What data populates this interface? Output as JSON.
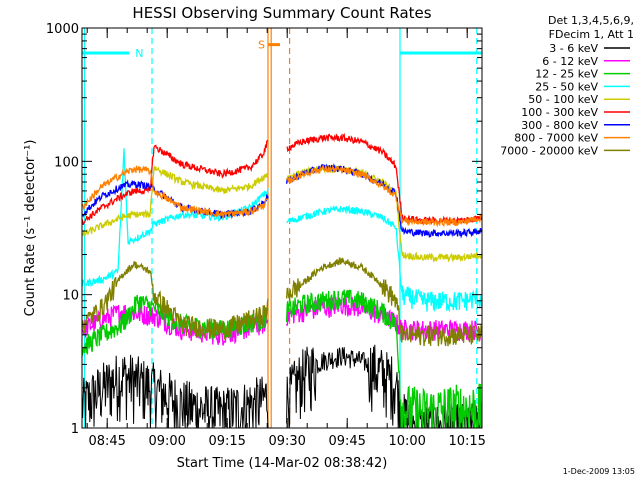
{
  "chart_data": {
    "type": "line",
    "title": "HESSI Observing Summary Count Rates",
    "xlabel": "Start Time (14-Mar-02 08:38:42)",
    "ylabel": "Count Rate (s⁻¹ detector⁻¹)",
    "y_scale": "log",
    "ylim": [
      1,
      1000
    ],
    "xlim_minutes": [
      0,
      100
    ],
    "x_ticks": [
      {
        "label": "08:45",
        "minute": 6.3
      },
      {
        "label": "09:00",
        "minute": 21.3
      },
      {
        "label": "09:15",
        "minute": 36.3
      },
      {
        "label": "09:30",
        "minute": 51.3
      },
      {
        "label": "09:45",
        "minute": 66.3
      },
      {
        "label": "10:00",
        "minute": 81.3
      },
      {
        "label": "10:15",
        "minute": 96.3
      }
    ],
    "y_ticks": [
      {
        "label": "1",
        "value": 1
      },
      {
        "label": "10",
        "value": 10
      },
      {
        "label": "100",
        "value": 100
      },
      {
        "label": "1000",
        "value": 1000
      }
    ],
    "legend": {
      "header": [
        "Det 1,3,4,5,6,9,",
        "FDecim 1, Att 1"
      ],
      "placement": "right"
    },
    "series": [
      {
        "name": "3 - 6 keV",
        "color": "#000000",
        "x": [
          0,
          5,
          10,
          18,
          25,
          35,
          45,
          46.5,
          49.5,
          51,
          55,
          60,
          65,
          70,
          75,
          78.5,
          80,
          85,
          95,
          100
        ],
        "y": [
          1.5,
          2,
          2.5,
          2,
          1.5,
          1.3,
          1.6,
          1.8,
          1.5,
          1.7,
          2.5,
          3.2,
          3.5,
          3.2,
          2.6,
          2.2,
          1.2,
          1,
          1,
          1
        ]
      },
      {
        "name": "6 - 12 keV",
        "color": "#ff00ff",
        "x": [
          0,
          5,
          10,
          18,
          25,
          35,
          45,
          46.5,
          49.5,
          51,
          55,
          60,
          65,
          70,
          75,
          78.5,
          80,
          85,
          95,
          100
        ],
        "y": [
          5.5,
          6.5,
          7.5,
          7,
          5.5,
          5,
          6,
          6.5,
          6.5,
          7,
          7.5,
          8,
          8.5,
          8,
          7,
          6.2,
          5.5,
          5.5,
          5.5,
          5.5
        ]
      },
      {
        "name": "12 - 25 keV",
        "color": "#00cc00",
        "x": [
          0,
          5,
          10,
          13,
          14,
          18,
          25,
          35,
          45,
          46.5,
          49.5,
          51,
          55,
          60,
          65,
          70,
          75,
          78.5,
          80,
          85,
          95,
          100
        ],
        "y": [
          4,
          5,
          6,
          8,
          9,
          8,
          6,
          5.5,
          6.5,
          7,
          7,
          7.5,
          8.5,
          9,
          9.5,
          9,
          7.5,
          6,
          1.4,
          1.3,
          1.4,
          1.4
        ]
      },
      {
        "name": "25 - 50 keV",
        "color": "#00ffff",
        "x": [
          0,
          5,
          9,
          10.5,
          11.5,
          13,
          17,
          18,
          25,
          35,
          42,
          45,
          46.5,
          49.5,
          51,
          55,
          60,
          65,
          70,
          75,
          78.5,
          80,
          85,
          95,
          100
        ],
        "y": [
          12,
          13,
          15,
          120,
          25,
          26,
          30,
          34,
          40,
          38,
          45,
          55,
          60,
          35,
          35,
          38,
          42,
          44,
          42,
          38,
          32,
          10,
          9,
          9,
          9.5
        ]
      },
      {
        "name": "50 - 100 keV",
        "color": "#cccc00",
        "x": [
          0,
          5,
          10,
          13,
          17,
          18,
          25,
          35,
          42,
          45,
          46.5,
          49.5,
          51,
          55,
          60,
          65,
          70,
          75,
          78.5,
          80,
          85,
          95,
          100
        ],
        "y": [
          28,
          33,
          38,
          40,
          40,
          90,
          70,
          60,
          65,
          75,
          80,
          75,
          75,
          82,
          88,
          88,
          82,
          70,
          58,
          20,
          19,
          19,
          20
        ]
      },
      {
        "name": "100 - 300 keV",
        "color": "#ff0000",
        "x": [
          0,
          5,
          10,
          13,
          17,
          18,
          25,
          35,
          42,
          45,
          46.5,
          49.5,
          51,
          55,
          60,
          65,
          70,
          75,
          78.5,
          80,
          85,
          95,
          100
        ],
        "y": [
          35,
          45,
          55,
          60,
          60,
          130,
          95,
          80,
          90,
          110,
          140,
          120,
          125,
          140,
          150,
          150,
          140,
          118,
          92,
          38,
          36,
          36,
          38
        ]
      },
      {
        "name": "300 - 800 keV",
        "color": "#0000ff",
        "x": [
          0,
          5,
          10,
          13,
          17,
          18,
          25,
          35,
          42,
          45,
          46.5,
          49.5,
          51,
          55,
          60,
          65,
          70,
          75,
          78.5,
          80,
          85,
          95,
          100
        ],
        "y": [
          40,
          55,
          65,
          68,
          65,
          62,
          45,
          40,
          42,
          48,
          55,
          60,
          70,
          80,
          90,
          88,
          80,
          68,
          58,
          30,
          29,
          29,
          30
        ]
      },
      {
        "name": "800 - 7000 keV",
        "color": "#ff8000",
        "x": [
          0,
          5,
          10,
          13,
          17,
          18,
          25,
          35,
          42,
          45,
          46.5,
          49.5,
          51,
          55,
          60,
          65,
          70,
          75,
          78.5,
          80,
          85,
          95,
          100
        ],
        "y": [
          45,
          65,
          80,
          88,
          85,
          60,
          45,
          40,
          42,
          46,
          52,
          62,
          70,
          80,
          88,
          86,
          80,
          66,
          55,
          36,
          35,
          35,
          38
        ]
      },
      {
        "name": "7000 - 20000 keV",
        "color": "#808000",
        "x": [
          0,
          5,
          10,
          13,
          17,
          18,
          25,
          35,
          45,
          46.5,
          49.5,
          51,
          55,
          60,
          65,
          70,
          75,
          78.5,
          80,
          85,
          95,
          100
        ],
        "y": [
          6,
          8,
          14,
          17,
          15,
          10,
          6,
          5.5,
          7,
          8,
          8,
          10,
          12,
          16,
          18,
          16,
          12,
          9,
          5,
          5,
          5,
          5
        ]
      }
    ],
    "markers": [
      {
        "label": "N",
        "color": "#00ffff",
        "start_minute": 0,
        "end_minute": 11.8,
        "level": 650
      },
      {
        "label": "",
        "color": "#00ffff",
        "start_minute": 79.5,
        "end_minute": 100,
        "level": 650
      },
      {
        "label": "S",
        "color": "#ff8000",
        "start_minute": 46.5,
        "end_minute": 49.5,
        "level": 750
      }
    ],
    "marker_lines": [
      {
        "minute": 0.6,
        "color": "#00ffff",
        "style": "solid"
      },
      {
        "minute": 17.5,
        "color": "#00ffff",
        "style": "dashed"
      },
      {
        "minute": 46.5,
        "color": "#ff8000",
        "style": "solid"
      },
      {
        "minute": 47.3,
        "color": "#ff8000",
        "style": "solid"
      },
      {
        "minute": 51.9,
        "color": "#ff8000",
        "style": "dashed"
      },
      {
        "minute": 79.5,
        "color": "#00ffff",
        "style": "solid"
      },
      {
        "minute": 98.7,
        "color": "#00ffff",
        "style": "dashed"
      }
    ],
    "gap_minutes": [
      46.5,
      51.0
    ]
  },
  "footer": {
    "timestamp": "1-Dec-2009 13:05"
  }
}
